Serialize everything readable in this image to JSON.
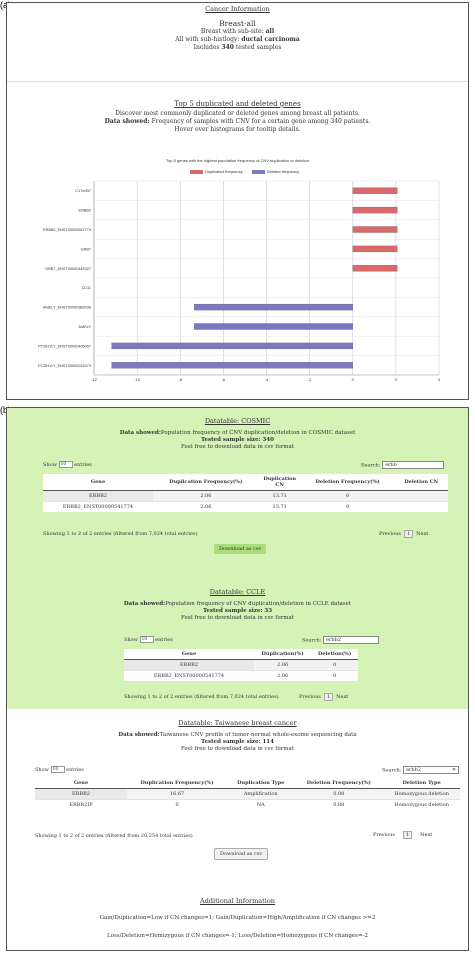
{
  "labels": {
    "a": "(a)",
    "b": "(b)"
  },
  "cancer_info": {
    "heading": "Cancer Information",
    "title": "Breast-all",
    "line1_prefix": "Breast with sub-site:",
    "line1_value": "all",
    "line2_prefix": "All with sub-histlogy:",
    "line2_value": "ductal carcinoma",
    "line3_prefix": "Includes",
    "line3_value": "340",
    "line3_suffix": "tested samples"
  },
  "top5": {
    "heading": "Top 5 duplicated and deleted genes",
    "line1": "Discover most commonly duplicated or deleted genes among breast all patients.",
    "line2_label": "Data showed:",
    "line2_text": "Frequency of samples with CNV for a certain gene among 340 patients.",
    "line3": "Hover over histograms for tooltip details."
  },
  "chart_data": {
    "type": "bar",
    "title": "Top 5 genes with the highest population frequency of CNV duplication or deletion",
    "orientation": "horizontal",
    "categories": [
      "C17orf37",
      "ERBB2",
      "ERBB2_ENST00000541774",
      "GRB7",
      "GRB7_ENST00000445327",
      "CD11",
      "AMELY_ENST00000383036",
      "AMELY",
      "PCDH11Y_ENST00000400457",
      "PCDH11Y_ENST00000215473"
    ],
    "series": [
      {
        "name": "Duplicated frequency",
        "color": "#d9696b",
        "values": [
          2.06,
          2.06,
          2.06,
          2.06,
          2.06,
          0,
          0,
          0,
          0,
          0
        ]
      },
      {
        "name": "Deleted frequency",
        "color": "#7a7ac4",
        "values": [
          0,
          0,
          0,
          0,
          0,
          0,
          -7.35,
          -7.35,
          -11.18,
          -11.18
        ]
      }
    ],
    "xlim": [
      -12,
      4
    ],
    "xticks": [
      -12,
      -10,
      -8,
      -6,
      -4,
      -2,
      0,
      2,
      4
    ],
    "legend": "top",
    "grid": true
  },
  "cosmic": {
    "title": "Datatable: COSMIC",
    "ds_label": "Data showed:",
    "ds_text": "Population frequency of CNV duplication/deletion in COSMIC dataset",
    "sample_label": "Tested sample size: 340",
    "free": "Feel free to download data in csv format",
    "show_label": "Show",
    "show_value": "10",
    "entries_label": "entries",
    "search_label": "Search:",
    "search_value": "erbb",
    "columns": [
      "Gene",
      "Duplication Frequency(%)",
      "Duplication CN",
      "Deletion Frequency(%)",
      "Deletion CN"
    ],
    "rows": [
      [
        "ERBB2",
        "2.06",
        "13.71",
        "0",
        ""
      ],
      [
        "ERBB2_ENST00000541774",
        "2.06",
        "13.71",
        "0",
        ""
      ]
    ],
    "info": "Showing 1 to 2 of 2 entries (filtered from 7,024 total entries)",
    "prev": "Previous",
    "page": "1",
    "next": "Next",
    "download": "Download as csv"
  },
  "ccle": {
    "title": "Datatable: CCLE",
    "ds_label": "Data showed:",
    "ds_text": "Population frequency of CNV duplication/deletion in CCLE dataset",
    "sample_label": "Tested sample size: 33",
    "free": "Feel free to download data in csv format",
    "show_label": "Show",
    "show_value": "10",
    "entries_label": "entries",
    "search_label": "Search:",
    "search_value": "erbb2",
    "columns": [
      "Gene",
      "Duplication(%)",
      "Deletion(%)"
    ],
    "rows": [
      [
        "ERBB2",
        "2.06",
        "0"
      ],
      [
        "ERBB2_ENST00000541774",
        "2.06",
        "0"
      ]
    ],
    "info": "Showing 1 to 2 of 2 entries (filtered from 7,024 total entries)",
    "prev": "Previous",
    "page": "1",
    "next": "Next"
  },
  "taiwan": {
    "title": "Datatable: Taiwanese breast cancer",
    "ds_label": "Data showed:",
    "ds_text": "Taiwanese CNV profile of tumor-normal whole-exome sequencing data",
    "sample_label": "Tested sample size: 114",
    "free": "Feel free to download data in csv format",
    "show_label": "Show",
    "show_value": "10",
    "entries_label": "entries",
    "search_label": "Search:",
    "search_value": "erbb2",
    "clear": "✕",
    "columns": [
      "Gene",
      "Duplication Frequency(%)",
      "Duplication Type",
      "Deletion Frequency(%)",
      "Deletion Type"
    ],
    "rows": [
      [
        "ERBB2",
        "16.67",
        "Amplification",
        "0.88",
        "Homozygous deletion"
      ],
      [
        "ERBB2IP",
        "0",
        "NA",
        "0.88",
        "Homozygous deletion"
      ]
    ],
    "info": "Showing 1 to 2 of 2 entries (filtered from 20,254 total entries)",
    "prev": "Previous",
    "page": "1",
    "next": "Next",
    "download": "Download as csv"
  },
  "additional": {
    "title": "Additional Information",
    "line1": "Gain/Duplication=Low if CN changes=1; Gain/Duplication=High/Amplification if CN changes >=2",
    "line2": "Loss/Deletion=Hemizygous if CN changes=-1; Loss/Deletion=Homozygous if CN changes=-2"
  },
  "colors": {
    "green_bg": "#d5f2b7",
    "dup": "#d9696b",
    "del": "#7a7ac4",
    "btn_green": "#a8dc7c"
  }
}
